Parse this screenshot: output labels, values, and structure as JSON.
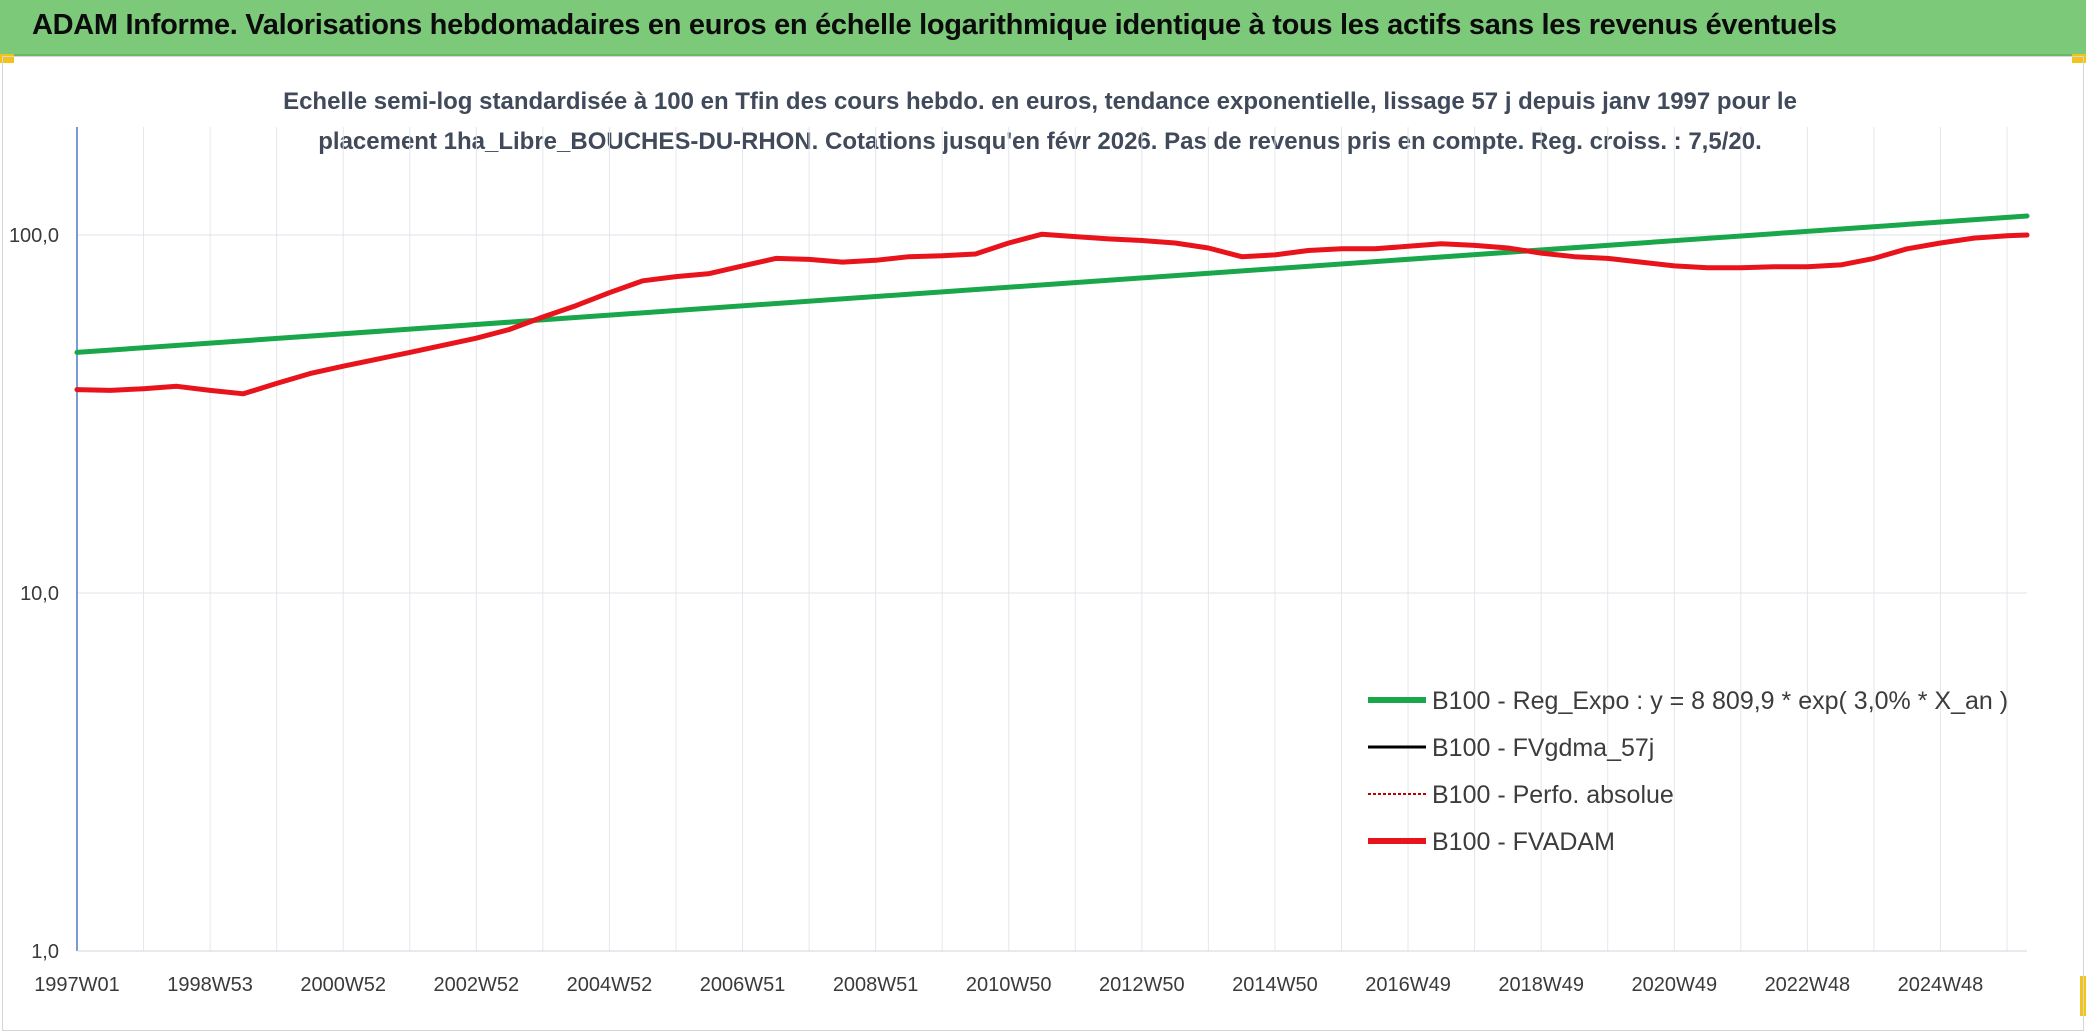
{
  "header": {
    "title": "ADAM Informe. Valorisations hebdomadaires en euros en échelle logarithmique identique à tous les actifs sans les revenus éventuels"
  },
  "colors": {
    "title_bar": "#7dc97a",
    "regression": "#1aa64a",
    "fvadam": "#e8131b",
    "fvgdma": "#000000",
    "perfo": "#c00000",
    "corner_accent": "#f2c318"
  },
  "chart_data": {
    "type": "line",
    "title_line1": "Echelle semi-log standardisée à 100 en Tfin des cours hebdo. en euros, tendance exponentielle, lissage 57 j depuis janv 1997 pour le",
    "title_line2": "placement 1ha_Libre_BOUCHES-DU-RHON. Cotations jusqu'en févr 2026. Pas de revenus pris en compte. Reg. croiss. : 7,5/20.",
    "y_scale": "log",
    "ylim": [
      1,
      200
    ],
    "xlim": [
      1997.0,
      2026.3
    ],
    "y_ticks": [
      {
        "value": 100,
        "label": "100,0"
      },
      {
        "value": 10,
        "label": "10,0"
      },
      {
        "value": 1,
        "label": "1,0"
      }
    ],
    "x_ticks": [
      {
        "value": 1997.0,
        "label": "1997W01"
      },
      {
        "value": 1999.0,
        "label": "1998W53"
      },
      {
        "value": 2001.0,
        "label": "2000W52"
      },
      {
        "value": 2003.0,
        "label": "2002W52"
      },
      {
        "value": 2005.0,
        "label": "2004W52"
      },
      {
        "value": 2007.0,
        "label": "2006W51"
      },
      {
        "value": 2009.0,
        "label": "2008W51"
      },
      {
        "value": 2011.0,
        "label": "2010W50"
      },
      {
        "value": 2013.0,
        "label": "2012W50"
      },
      {
        "value": 2015.0,
        "label": "2014W50"
      },
      {
        "value": 2017.0,
        "label": "2016W49"
      },
      {
        "value": 2019.0,
        "label": "2018W49"
      },
      {
        "value": 2021.0,
        "label": "2020W49"
      },
      {
        "value": 2023.0,
        "label": "2022W48"
      },
      {
        "value": 2025.0,
        "label": "2024W48"
      }
    ],
    "grid": true,
    "legend_position": "bottom-right",
    "series": [
      {
        "name": "B100 - Reg_Expo : y = 8 809,9 * exp( 3,0% *  X_an )",
        "color": "#1aa64a",
        "style": "solid",
        "x": [
          1997.0,
          2026.3
        ],
        "y": [
          47.0,
          113.0
        ]
      },
      {
        "name": "B100 - FVgdma_57j",
        "color": "#000000",
        "style": "solid",
        "x": [],
        "y": []
      },
      {
        "name": "B100 - Perfo. absolue",
        "color": "#c00000",
        "style": "dotted",
        "x": [],
        "y": []
      },
      {
        "name": "B100 - FVADAM",
        "color": "#e8131b",
        "style": "solid",
        "x": [
          1997.0,
          1997.5,
          1998.0,
          1998.5,
          1999.0,
          1999.5,
          2000.0,
          2000.5,
          2001.0,
          2002.0,
          2003.0,
          2003.5,
          2004.0,
          2004.5,
          2005.0,
          2005.5,
          2006.0,
          2006.5,
          2007.0,
          2007.5,
          2008.0,
          2008.5,
          2009.0,
          2009.5,
          2010.0,
          2010.5,
          2011.0,
          2011.5,
          2012.0,
          2012.5,
          2013.0,
          2013.5,
          2014.0,
          2014.5,
          2015.0,
          2015.5,
          2016.0,
          2016.5,
          2017.0,
          2017.5,
          2018.0,
          2018.5,
          2019.0,
          2019.5,
          2020.0,
          2020.5,
          2021.0,
          2021.5,
          2022.0,
          2022.5,
          2023.0,
          2023.5,
          2024.0,
          2024.5,
          2025.0,
          2025.5,
          2026.0,
          2026.3
        ],
        "y": [
          37.0,
          36.8,
          37.2,
          37.8,
          36.8,
          36.0,
          38.5,
          41.0,
          43.0,
          47.0,
          51.5,
          54.5,
          59.0,
          63.5,
          69.0,
          74.5,
          76.5,
          78.0,
          82.0,
          86.0,
          85.5,
          84.0,
          85.0,
          87.0,
          87.5,
          88.5,
          95.0,
          100.5,
          99.0,
          97.5,
          96.5,
          95.0,
          92.0,
          87.0,
          88.0,
          90.5,
          91.5,
          91.5,
          93.0,
          94.5,
          93.5,
          92.0,
          89.0,
          87.0,
          86.0,
          84.0,
          82.0,
          81.0,
          81.0,
          81.5,
          81.5,
          82.5,
          86.0,
          91.5,
          95.0,
          98.0,
          99.5,
          100.0
        ]
      }
    ]
  }
}
